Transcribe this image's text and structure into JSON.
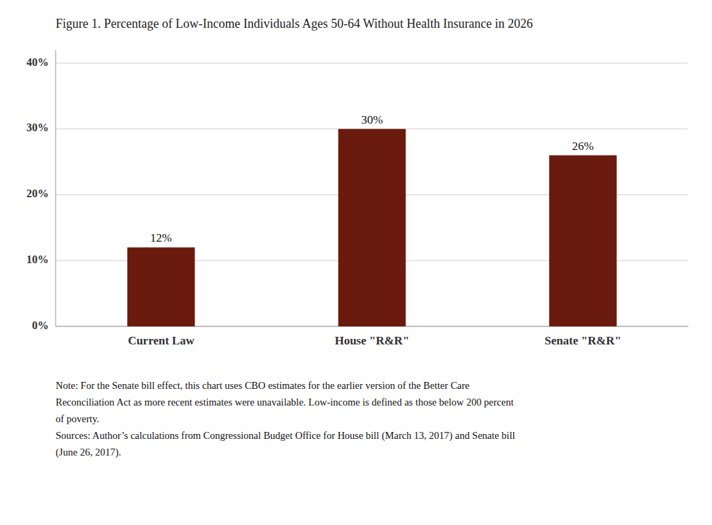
{
  "chart_data": {
    "type": "bar",
    "title": "Figure 1. Percentage of Low-Income Individuals Ages 50-64 Without Health Insurance in 2026",
    "categories": [
      "Current Law",
      "House \"R&R\"",
      "Senate \"R&R\""
    ],
    "values": [
      12,
      30,
      26
    ],
    "value_labels": [
      "12%",
      "30%",
      "26%"
    ],
    "data_labels": true,
    "color": "#6B1A0E",
    "ylim": [
      0,
      42
    ],
    "yticks": [
      {
        "value": 0,
        "label": "0%"
      },
      {
        "value": 10,
        "label": "10%"
      },
      {
        "value": 20,
        "label": "20%"
      },
      {
        "value": 30,
        "label": "30%"
      },
      {
        "value": 40,
        "label": "40%"
      }
    ],
    "grid": true,
    "annotations": [
      "Note: For the Senate bill effect, this chart uses CBO estimates for the earlier version of the Better Care",
      "Reconciliation Act as more recent estimates were unavailable.  Low-income is defined as those below 200 percent",
      "of poverty.",
      "Sources: Author’s calculations from Congressional Budget Office for House bill (March 13, 2017) and Senate bill",
      "(June 26, 2017)."
    ]
  }
}
